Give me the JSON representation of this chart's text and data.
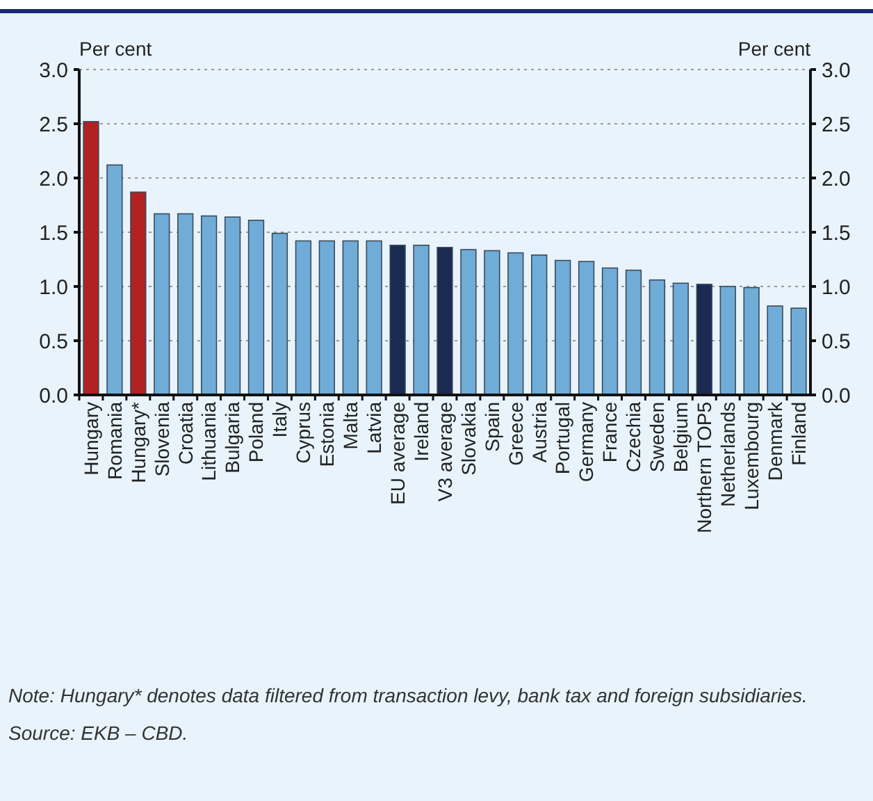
{
  "chart_data": {
    "type": "bar",
    "ylabel": "Per cent",
    "y2label": "Per cent",
    "categories": [
      "Hungary",
      "Romania",
      "Hungary*",
      "Slovenia",
      "Croatia",
      "Lithuania",
      "Bulgaria",
      "Poland",
      "Italy",
      "Cyprus",
      "Estonia",
      "Malta",
      "Latvia",
      "EU average",
      "Ireland",
      "V3 average",
      "Slovakia",
      "Spain",
      "Greece",
      "Austria",
      "Portugal",
      "Germany",
      "France",
      "Czechia",
      "Sweden",
      "Belgium",
      "Northern TOP5",
      "Netherlands",
      "Luxembourg",
      "Denmark",
      "Finland"
    ],
    "values": [
      2.52,
      2.12,
      1.87,
      1.67,
      1.67,
      1.65,
      1.64,
      1.61,
      1.49,
      1.42,
      1.42,
      1.42,
      1.42,
      1.38,
      1.38,
      1.36,
      1.34,
      1.33,
      1.31,
      1.29,
      1.24,
      1.23,
      1.17,
      1.15,
      1.06,
      1.03,
      1.02,
      1.0,
      0.99,
      0.82,
      0.8
    ],
    "colors": [
      "#b22222",
      "#70acd8",
      "#b22222",
      "#70acd8",
      "#70acd8",
      "#70acd8",
      "#70acd8",
      "#70acd8",
      "#70acd8",
      "#70acd8",
      "#70acd8",
      "#70acd8",
      "#70acd8",
      "#1b2a52",
      "#70acd8",
      "#1b2a52",
      "#70acd8",
      "#70acd8",
      "#70acd8",
      "#70acd8",
      "#70acd8",
      "#70acd8",
      "#70acd8",
      "#70acd8",
      "#70acd8",
      "#70acd8",
      "#1b2a52",
      "#70acd8",
      "#70acd8",
      "#70acd8",
      "#70acd8"
    ],
    "ylim": [
      0,
      3
    ],
    "yticks": [
      {
        "value": 0,
        "label": "0.0"
      },
      {
        "value": 0.5,
        "label": "0.5"
      },
      {
        "value": 1,
        "label": "1.0"
      },
      {
        "value": 1.5,
        "label": "1.5"
      },
      {
        "value": 2,
        "label": "2.0"
      },
      {
        "value": 2.5,
        "label": "2.5"
      },
      {
        "value": 3,
        "label": "3.0"
      }
    ],
    "y2lim": [
      0,
      3
    ],
    "y2ticks": [
      {
        "value": 0,
        "label": "0.0"
      },
      {
        "value": 0.5,
        "label": "0.5"
      },
      {
        "value": 1,
        "label": "1.0"
      },
      {
        "value": 1.5,
        "label": "1.5"
      },
      {
        "value": 2,
        "label": "2.0"
      },
      {
        "value": 2.5,
        "label": "2.5"
      },
      {
        "value": 3,
        "label": "3.0"
      }
    ],
    "grid": "y",
    "annotations": [
      "Note: Hungary* denotes data filtered from transaction levy, bank tax and foreign subsidiaries.",
      "Source: EKB – CBD."
    ]
  }
}
